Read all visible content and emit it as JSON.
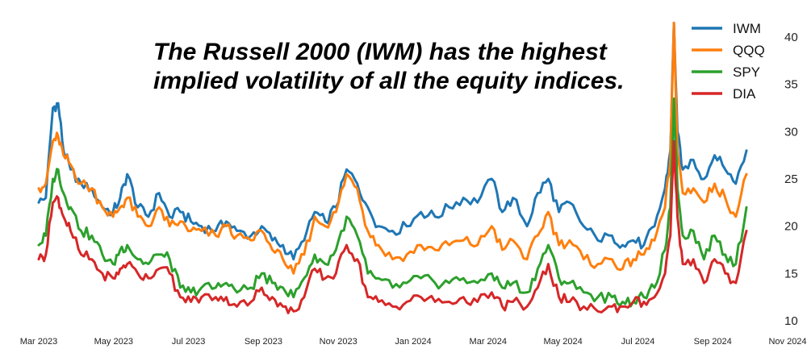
{
  "chart_data": {
    "type": "line",
    "title": "",
    "annotation": [
      "The Russell 2000 (IWM) has the highest",
      "implied volatility of all the equity indices."
    ],
    "xlabel": "",
    "ylabel": "",
    "ylim": [
      9,
      42
    ],
    "yticks": [
      10,
      15,
      20,
      25,
      30,
      35,
      40
    ],
    "y_axis_side": "right",
    "grid": false,
    "legend_position": "top-right",
    "x_tick_labels": [
      "Mar 2023",
      "May 2023",
      "Jul 2023",
      "Sep 2023",
      "Nov 2023",
      "Jan 2024",
      "Mar 2024",
      "May 2024",
      "Jul 2024",
      "Sep 2024",
      "Nov 2024"
    ],
    "x_range": [
      0,
      20
    ],
    "series": [
      {
        "name": "IWM",
        "color": "#1f77b4",
        "points": [
          [
            0.0,
            22.5
          ],
          [
            0.2,
            23.0
          ],
          [
            0.4,
            32.5
          ],
          [
            0.55,
            33.0
          ],
          [
            0.7,
            28.0
          ],
          [
            0.9,
            26.0
          ],
          [
            1.2,
            24.5
          ],
          [
            1.5,
            24.0
          ],
          [
            1.8,
            22.0
          ],
          [
            2.1,
            21.5
          ],
          [
            2.3,
            23.0
          ],
          [
            2.5,
            25.5
          ],
          [
            2.8,
            22.0
          ],
          [
            3.1,
            21.0
          ],
          [
            3.4,
            23.5
          ],
          [
            3.7,
            21.0
          ],
          [
            4.0,
            21.5
          ],
          [
            4.3,
            20.5
          ],
          [
            4.6,
            20.0
          ],
          [
            5.0,
            19.5
          ],
          [
            5.3,
            20.5
          ],
          [
            5.6,
            19.5
          ],
          [
            6.0,
            19.0
          ],
          [
            6.3,
            20.0
          ],
          [
            6.6,
            18.5
          ],
          [
            6.9,
            18.0
          ],
          [
            7.2,
            16.5
          ],
          [
            7.5,
            18.5
          ],
          [
            7.8,
            21.5
          ],
          [
            8.1,
            20.5
          ],
          [
            8.4,
            22.0
          ],
          [
            8.7,
            26.0
          ],
          [
            9.0,
            24.5
          ],
          [
            9.3,
            22.0
          ],
          [
            9.6,
            20.0
          ],
          [
            10.0,
            19.5
          ],
          [
            10.4,
            20.0
          ],
          [
            10.8,
            21.5
          ],
          [
            11.2,
            21.0
          ],
          [
            11.6,
            22.0
          ],
          [
            12.0,
            23.0
          ],
          [
            12.4,
            22.5
          ],
          [
            12.8,
            25.0
          ],
          [
            13.1,
            21.5
          ],
          [
            13.4,
            23.0
          ],
          [
            13.8,
            20.0
          ],
          [
            14.1,
            23.5
          ],
          [
            14.4,
            25.0
          ],
          [
            14.7,
            21.5
          ],
          [
            15.0,
            22.5
          ],
          [
            15.4,
            20.0
          ],
          [
            15.8,
            18.5
          ],
          [
            16.2,
            19.0
          ],
          [
            16.5,
            18.0
          ],
          [
            16.8,
            18.5
          ],
          [
            17.1,
            18.0
          ],
          [
            17.4,
            20.0
          ],
          [
            17.7,
            24.0
          ],
          [
            17.85,
            28.0
          ],
          [
            17.95,
            41.5
          ],
          [
            18.05,
            30.0
          ],
          [
            18.2,
            26.0
          ],
          [
            18.5,
            27.0
          ],
          [
            18.8,
            25.0
          ],
          [
            19.1,
            27.5
          ],
          [
            19.4,
            26.0
          ],
          [
            19.7,
            24.5
          ],
          [
            20.0,
            28.0
          ]
        ]
      },
      {
        "name": "QQQ",
        "color": "#ff7f0e",
        "points": [
          [
            0.0,
            24.0
          ],
          [
            0.2,
            24.5
          ],
          [
            0.4,
            29.0
          ],
          [
            0.55,
            29.5
          ],
          [
            0.7,
            27.5
          ],
          [
            0.9,
            26.5
          ],
          [
            1.2,
            24.5
          ],
          [
            1.5,
            24.0
          ],
          [
            1.8,
            22.0
          ],
          [
            2.1,
            21.0
          ],
          [
            2.3,
            22.0
          ],
          [
            2.5,
            23.0
          ],
          [
            2.8,
            21.0
          ],
          [
            3.1,
            20.0
          ],
          [
            3.4,
            22.0
          ],
          [
            3.7,
            20.0
          ],
          [
            4.0,
            20.5
          ],
          [
            4.3,
            19.5
          ],
          [
            4.6,
            19.5
          ],
          [
            5.0,
            19.0
          ],
          [
            5.3,
            20.0
          ],
          [
            5.6,
            19.0
          ],
          [
            6.0,
            18.5
          ],
          [
            6.3,
            19.5
          ],
          [
            6.6,
            17.5
          ],
          [
            6.9,
            16.5
          ],
          [
            7.2,
            15.0
          ],
          [
            7.5,
            17.0
          ],
          [
            7.8,
            21.0
          ],
          [
            8.1,
            20.0
          ],
          [
            8.4,
            21.5
          ],
          [
            8.7,
            25.5
          ],
          [
            9.0,
            24.0
          ],
          [
            9.3,
            19.5
          ],
          [
            9.6,
            18.0
          ],
          [
            10.0,
            16.5
          ],
          [
            10.4,
            17.0
          ],
          [
            10.8,
            18.0
          ],
          [
            11.2,
            17.5
          ],
          [
            11.6,
            18.0
          ],
          [
            12.0,
            18.5
          ],
          [
            12.4,
            18.0
          ],
          [
            12.8,
            20.0
          ],
          [
            13.1,
            17.5
          ],
          [
            13.4,
            18.5
          ],
          [
            13.8,
            16.5
          ],
          [
            14.1,
            19.0
          ],
          [
            14.4,
            21.5
          ],
          [
            14.7,
            18.0
          ],
          [
            15.0,
            18.5
          ],
          [
            15.4,
            16.5
          ],
          [
            15.8,
            16.0
          ],
          [
            16.2,
            16.5
          ],
          [
            16.5,
            15.5
          ],
          [
            16.8,
            16.5
          ],
          [
            17.1,
            17.0
          ],
          [
            17.4,
            18.5
          ],
          [
            17.7,
            22.0
          ],
          [
            17.85,
            27.0
          ],
          [
            17.95,
            41.5
          ],
          [
            18.05,
            28.0
          ],
          [
            18.2,
            23.5
          ],
          [
            18.5,
            24.0
          ],
          [
            18.8,
            22.5
          ],
          [
            19.1,
            24.5
          ],
          [
            19.4,
            23.0
          ],
          [
            19.7,
            21.0
          ],
          [
            20.0,
            25.5
          ]
        ]
      },
      {
        "name": "SPY",
        "color": "#2ca02c",
        "points": [
          [
            0.0,
            18.0
          ],
          [
            0.2,
            19.0
          ],
          [
            0.4,
            25.0
          ],
          [
            0.55,
            26.0
          ],
          [
            0.7,
            23.5
          ],
          [
            0.9,
            22.0
          ],
          [
            1.2,
            19.5
          ],
          [
            1.5,
            19.0
          ],
          [
            1.8,
            17.0
          ],
          [
            2.1,
            16.0
          ],
          [
            2.3,
            17.5
          ],
          [
            2.5,
            18.0
          ],
          [
            2.8,
            16.5
          ],
          [
            3.1,
            16.0
          ],
          [
            3.4,
            17.0
          ],
          [
            3.7,
            16.5
          ],
          [
            4.0,
            13.5
          ],
          [
            4.3,
            13.0
          ],
          [
            4.6,
            13.5
          ],
          [
            5.0,
            13.5
          ],
          [
            5.3,
            14.0
          ],
          [
            5.6,
            13.0
          ],
          [
            6.0,
            13.5
          ],
          [
            6.3,
            15.0
          ],
          [
            6.6,
            14.0
          ],
          [
            6.9,
            13.5
          ],
          [
            7.2,
            12.5
          ],
          [
            7.5,
            14.5
          ],
          [
            7.8,
            17.0
          ],
          [
            8.1,
            16.0
          ],
          [
            8.4,
            17.5
          ],
          [
            8.7,
            21.0
          ],
          [
            9.0,
            19.0
          ],
          [
            9.3,
            15.0
          ],
          [
            9.6,
            14.5
          ],
          [
            10.0,
            13.5
          ],
          [
            10.4,
            14.0
          ],
          [
            10.8,
            14.5
          ],
          [
            11.2,
            14.0
          ],
          [
            11.6,
            14.0
          ],
          [
            12.0,
            14.5
          ],
          [
            12.4,
            14.0
          ],
          [
            12.8,
            15.0
          ],
          [
            13.1,
            13.5
          ],
          [
            13.4,
            14.0
          ],
          [
            13.8,
            13.0
          ],
          [
            14.1,
            15.5
          ],
          [
            14.4,
            18.0
          ],
          [
            14.7,
            14.5
          ],
          [
            15.0,
            14.0
          ],
          [
            15.4,
            13.0
          ],
          [
            15.8,
            12.5
          ],
          [
            16.2,
            12.5
          ],
          [
            16.5,
            12.0
          ],
          [
            16.8,
            12.0
          ],
          [
            17.1,
            12.5
          ],
          [
            17.4,
            13.5
          ],
          [
            17.7,
            17.5
          ],
          [
            17.85,
            22.0
          ],
          [
            17.95,
            33.5
          ],
          [
            18.05,
            24.0
          ],
          [
            18.2,
            19.0
          ],
          [
            18.5,
            19.5
          ],
          [
            18.8,
            16.5
          ],
          [
            19.1,
            19.0
          ],
          [
            19.4,
            17.0
          ],
          [
            19.7,
            16.0
          ],
          [
            20.0,
            22.0
          ]
        ]
      },
      {
        "name": "DIA",
        "color": "#d62728",
        "points": [
          [
            0.0,
            16.5
          ],
          [
            0.2,
            17.0
          ],
          [
            0.4,
            22.5
          ],
          [
            0.55,
            23.0
          ],
          [
            0.7,
            21.0
          ],
          [
            0.9,
            19.5
          ],
          [
            1.2,
            17.0
          ],
          [
            1.5,
            16.5
          ],
          [
            1.8,
            15.0
          ],
          [
            2.1,
            14.5
          ],
          [
            2.3,
            15.5
          ],
          [
            2.5,
            16.0
          ],
          [
            2.8,
            15.0
          ],
          [
            3.1,
            14.5
          ],
          [
            3.4,
            15.5
          ],
          [
            3.7,
            15.0
          ],
          [
            4.0,
            12.5
          ],
          [
            4.3,
            12.0
          ],
          [
            4.6,
            12.5
          ],
          [
            5.0,
            12.5
          ],
          [
            5.3,
            12.5
          ],
          [
            5.6,
            11.5
          ],
          [
            6.0,
            12.0
          ],
          [
            6.3,
            13.5
          ],
          [
            6.6,
            12.5
          ],
          [
            6.9,
            11.5
          ],
          [
            7.2,
            11.0
          ],
          [
            7.5,
            12.5
          ],
          [
            7.8,
            15.5
          ],
          [
            8.1,
            14.5
          ],
          [
            8.4,
            15.0
          ],
          [
            8.7,
            18.0
          ],
          [
            9.0,
            16.5
          ],
          [
            9.3,
            12.5
          ],
          [
            9.6,
            12.0
          ],
          [
            10.0,
            11.5
          ],
          [
            10.4,
            12.0
          ],
          [
            10.8,
            12.5
          ],
          [
            11.2,
            12.0
          ],
          [
            11.6,
            12.0
          ],
          [
            12.0,
            12.5
          ],
          [
            12.4,
            12.0
          ],
          [
            12.8,
            13.0
          ],
          [
            13.1,
            11.5
          ],
          [
            13.4,
            12.0
          ],
          [
            13.8,
            11.5
          ],
          [
            14.1,
            13.5
          ],
          [
            14.4,
            16.0
          ],
          [
            14.7,
            12.5
          ],
          [
            15.0,
            12.0
          ],
          [
            15.4,
            11.5
          ],
          [
            15.8,
            11.0
          ],
          [
            16.2,
            11.5
          ],
          [
            16.5,
            11.5
          ],
          [
            16.8,
            12.0
          ],
          [
            17.1,
            12.0
          ],
          [
            17.4,
            12.5
          ],
          [
            17.7,
            15.0
          ],
          [
            17.85,
            19.0
          ],
          [
            17.95,
            29.0
          ],
          [
            18.05,
            21.0
          ],
          [
            18.2,
            16.0
          ],
          [
            18.5,
            16.5
          ],
          [
            18.8,
            14.0
          ],
          [
            19.1,
            16.5
          ],
          [
            19.4,
            15.0
          ],
          [
            19.7,
            14.0
          ],
          [
            20.0,
            19.5
          ]
        ]
      }
    ]
  }
}
